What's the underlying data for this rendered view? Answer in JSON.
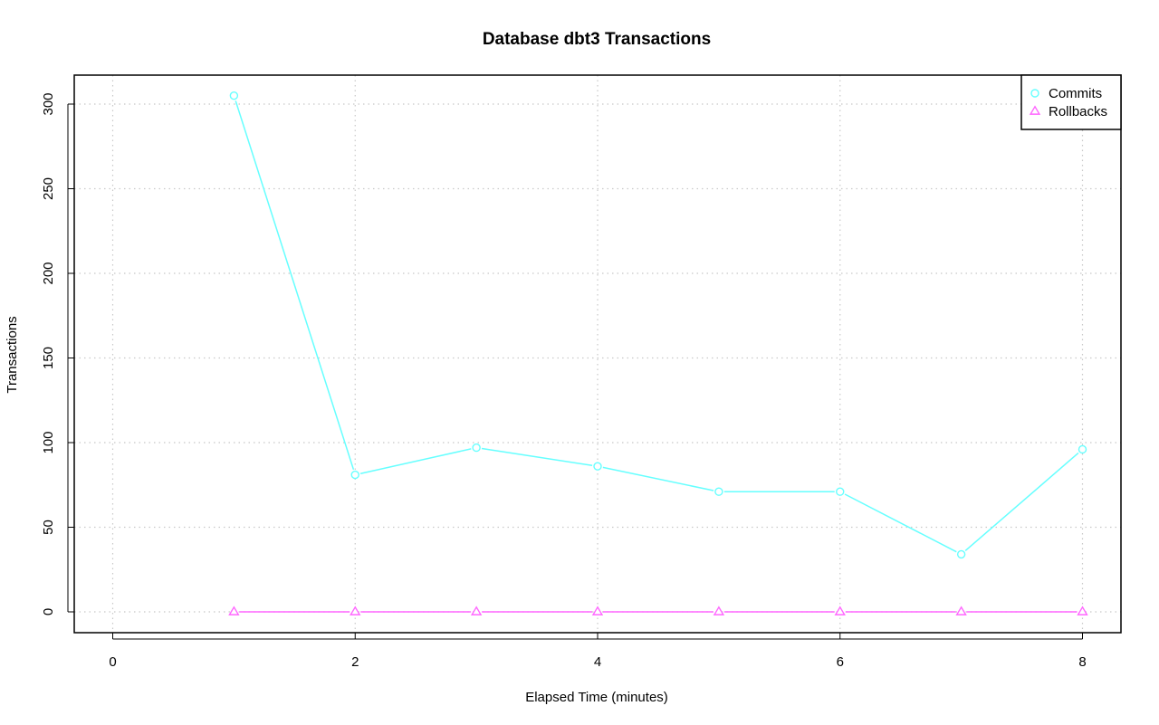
{
  "chart_data": {
    "type": "line",
    "title": "Database dbt3 Transactions",
    "xlabel": "Elapsed Time (minutes)",
    "ylabel": "Transactions",
    "xlim": [
      0,
      8
    ],
    "ylim": [
      0,
      300
    ],
    "x_ticks": [
      0,
      2,
      4,
      6,
      8
    ],
    "y_ticks": [
      0,
      50,
      100,
      150,
      200,
      250,
      300
    ],
    "grid": true,
    "legend_position": "top-right",
    "x": [
      1,
      2,
      3,
      4,
      5,
      6,
      7,
      8
    ],
    "series": [
      {
        "name": "Commits",
        "values": [
          305,
          81,
          97,
          86,
          71,
          71,
          34,
          96
        ],
        "color": "#66ffff",
        "marker": "circle"
      },
      {
        "name": "Rollbacks",
        "values": [
          0,
          0,
          0,
          0,
          0,
          0,
          0,
          0
        ],
        "color": "#ff66ff",
        "marker": "triangle"
      }
    ]
  }
}
